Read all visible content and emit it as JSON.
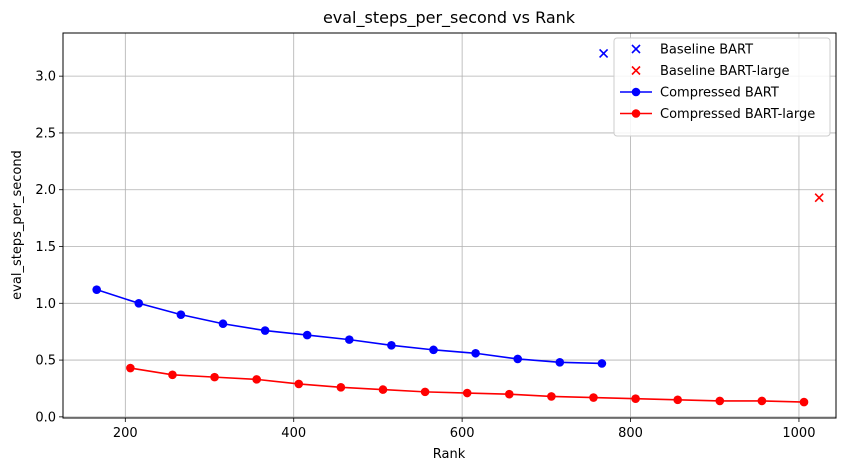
{
  "chart_data": {
    "type": "line",
    "title": "eval_steps_per_second vs Rank",
    "xlabel": "Rank",
    "ylabel": "eval_steps_per_second",
    "xlim": [
      126,
      1044
    ],
    "ylim": [
      -0.01,
      3.38
    ],
    "xticks": [
      200,
      400,
      600,
      800,
      1000
    ],
    "yticks": [
      0.0,
      0.5,
      1.0,
      1.5,
      2.0,
      2.5,
      3.0
    ],
    "xtick_labels": [
      "200",
      "400",
      "600",
      "800",
      "1000"
    ],
    "ytick_labels": [
      "0.0",
      "0.5",
      "1.0",
      "1.5",
      "2.0",
      "2.5",
      "3.0"
    ],
    "grid": true,
    "legend_position": "top-right",
    "series": [
      {
        "name": "Baseline BART",
        "kind": "scatter",
        "marker": "x",
        "color": "#0000ff",
        "x": [
          768
        ],
        "y": [
          3.2
        ]
      },
      {
        "name": "Baseline BART-large",
        "kind": "scatter",
        "marker": "x",
        "color": "#ff0000",
        "x": [
          1024
        ],
        "y": [
          1.93
        ]
      },
      {
        "name": "Compressed BART",
        "kind": "line",
        "marker": "o",
        "color": "#0000ff",
        "x": [
          166,
          216,
          266,
          316,
          366,
          416,
          466,
          516,
          566,
          616,
          666,
          716,
          766
        ],
        "y": [
          1.12,
          1.0,
          0.9,
          0.82,
          0.76,
          0.72,
          0.68,
          0.63,
          0.59,
          0.56,
          0.51,
          0.48,
          0.47
        ]
      },
      {
        "name": "Compressed BART-large",
        "kind": "line",
        "marker": "o",
        "color": "#ff0000",
        "x": [
          206,
          256,
          306,
          356,
          406,
          456,
          506,
          556,
          606,
          656,
          706,
          756,
          806,
          856,
          906,
          956,
          1006
        ],
        "y": [
          0.43,
          0.37,
          0.35,
          0.33,
          0.29,
          0.26,
          0.24,
          0.22,
          0.21,
          0.2,
          0.18,
          0.17,
          0.16,
          0.15,
          0.14,
          0.14,
          0.13
        ]
      }
    ]
  }
}
